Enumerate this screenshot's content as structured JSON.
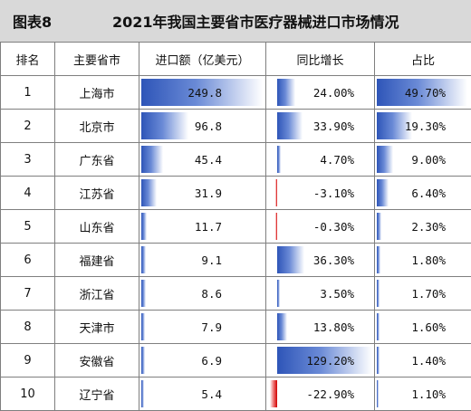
{
  "title": {
    "figure": "图表8",
    "text": "2021年我国主要省市医疗器械进口市场情况"
  },
  "headers": [
    "排名",
    "主要省市",
    "进口额（亿美元）",
    "同比增长",
    "占比"
  ],
  "colors": {
    "bar_positive": "#2e55b8",
    "bar_negative": "#d10000",
    "header_bg": "#d9d9d9"
  },
  "rows": [
    {
      "rank": "1",
      "province": "上海市",
      "imports": "249.8",
      "imports_value": 249.8,
      "growth": "24.00%",
      "growth_value": 24.0,
      "share": "49.70%",
      "share_value": 49.7
    },
    {
      "rank": "2",
      "province": "北京市",
      "imports": "96.8",
      "imports_value": 96.8,
      "growth": "33.90%",
      "growth_value": 33.9,
      "share": "19.30%",
      "share_value": 19.3
    },
    {
      "rank": "3",
      "province": "广东省",
      "imports": "45.4",
      "imports_value": 45.4,
      "growth": "4.70%",
      "growth_value": 4.7,
      "share": "9.00%",
      "share_value": 9.0
    },
    {
      "rank": "4",
      "province": "江苏省",
      "imports": "31.9",
      "imports_value": 31.9,
      "growth": "-3.10%",
      "growth_value": -3.1,
      "share": "6.40%",
      "share_value": 6.4
    },
    {
      "rank": "5",
      "province": "山东省",
      "imports": "11.7",
      "imports_value": 11.7,
      "growth": "-0.30%",
      "growth_value": -0.3,
      "share": "2.30%",
      "share_value": 2.3
    },
    {
      "rank": "6",
      "province": "福建省",
      "imports": "9.1",
      "imports_value": 9.1,
      "growth": "36.30%",
      "growth_value": 36.3,
      "share": "1.80%",
      "share_value": 1.8
    },
    {
      "rank": "7",
      "province": "浙江省",
      "imports": "8.6",
      "imports_value": 8.6,
      "growth": "3.50%",
      "growth_value": 3.5,
      "share": "1.70%",
      "share_value": 1.7
    },
    {
      "rank": "8",
      "province": "天津市",
      "imports": "7.9",
      "imports_value": 7.9,
      "growth": "13.80%",
      "growth_value": 13.8,
      "share": "1.60%",
      "share_value": 1.6
    },
    {
      "rank": "9",
      "province": "安徽省",
      "imports": "6.9",
      "imports_value": 6.9,
      "growth": "129.20%",
      "growth_value": 129.2,
      "share": "1.40%",
      "share_value": 1.4
    },
    {
      "rank": "10",
      "province": "辽宁省",
      "imports": "5.4",
      "imports_value": 5.4,
      "growth": "-22.90%",
      "growth_value": -22.9,
      "share": "1.10%",
      "share_value": 1.1
    }
  ]
}
